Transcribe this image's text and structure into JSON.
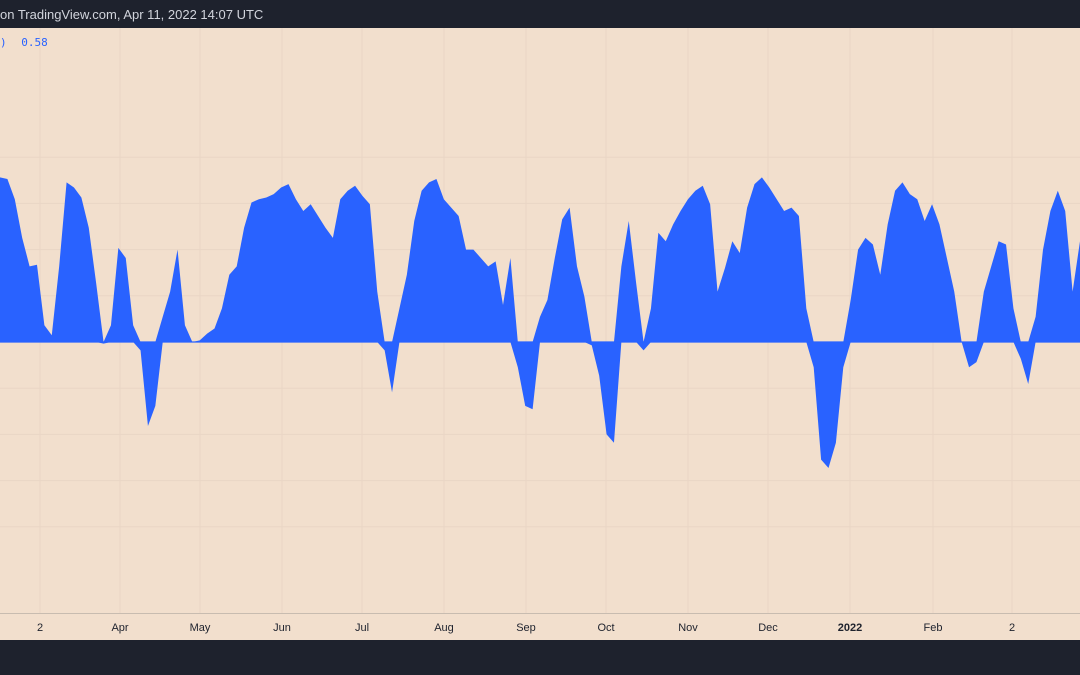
{
  "header": {
    "attribution": "on TradingView.com, Apr 11, 2022 14:07 UTC"
  },
  "legend": {
    "bracket": ")",
    "value": "0.58"
  },
  "colors": {
    "background": "#1e222d",
    "plot_background": "#f2dfcd",
    "series": "#2962ff",
    "grid": "#e9d6c5",
    "axis_text": "#1e222d"
  },
  "chart_data": {
    "type": "area",
    "x_axis_ticks": [
      "2",
      "Apr",
      "May",
      "Jun",
      "Jul",
      "Aug",
      "Sep",
      "Oct",
      "Nov",
      "Dec",
      "2022",
      "Feb",
      "2"
    ],
    "ylim": [
      -1,
      1
    ],
    "baseline": 0,
    "grid": true,
    "series": [
      {
        "values": [
          0.98,
          0.97,
          0.85,
          0.62,
          0.45,
          0.46,
          0.1,
          0.04,
          0.45,
          0.95,
          0.92,
          0.86,
          0.68,
          0.35,
          -0.01,
          0.1,
          0.56,
          0.5,
          0.1,
          -0.05,
          -0.5,
          -0.38,
          0.15,
          0.3,
          0.55,
          0.1,
          0.0,
          0.01,
          0.05,
          0.08,
          0.2,
          0.4,
          0.45,
          0.68,
          0.83,
          0.85,
          0.86,
          0.88,
          0.92,
          0.94,
          0.85,
          0.78,
          0.82,
          0.75,
          0.68,
          0.62,
          0.85,
          0.9,
          0.93,
          0.87,
          0.82,
          0.3,
          -0.05,
          -0.3,
          0.2,
          0.4,
          0.72,
          0.9,
          0.95,
          0.97,
          0.85,
          0.8,
          0.75,
          0.55,
          0.55,
          0.5,
          0.45,
          0.48,
          0.22,
          0.5,
          -0.15,
          -0.38,
          -0.4,
          0.15,
          0.25,
          0.5,
          0.73,
          0.8,
          0.45,
          0.27,
          -0.02,
          -0.2,
          -0.55,
          -0.6,
          0.45,
          0.72,
          0.35,
          -0.05,
          0.2,
          0.65,
          0.6,
          0.7,
          0.78,
          0.85,
          0.9,
          0.93,
          0.82,
          0.3,
          0.44,
          0.6,
          0.53,
          0.8,
          0.94,
          0.98,
          0.92,
          0.85,
          0.78,
          0.8,
          0.75,
          0.2,
          -0.15,
          -0.7,
          -0.75,
          -0.6,
          -0.15,
          0.25,
          0.55,
          0.62,
          0.58,
          0.4,
          0.7,
          0.9,
          0.95,
          0.88,
          0.85,
          0.72,
          0.82,
          0.7,
          0.5,
          0.3,
          0.0,
          -0.15,
          -0.12,
          0.3,
          0.45,
          0.6,
          0.58,
          0.2,
          -0.1,
          -0.25,
          0.15,
          0.55,
          0.78,
          0.9,
          0.78,
          0.3,
          0.6
        ]
      }
    ]
  }
}
